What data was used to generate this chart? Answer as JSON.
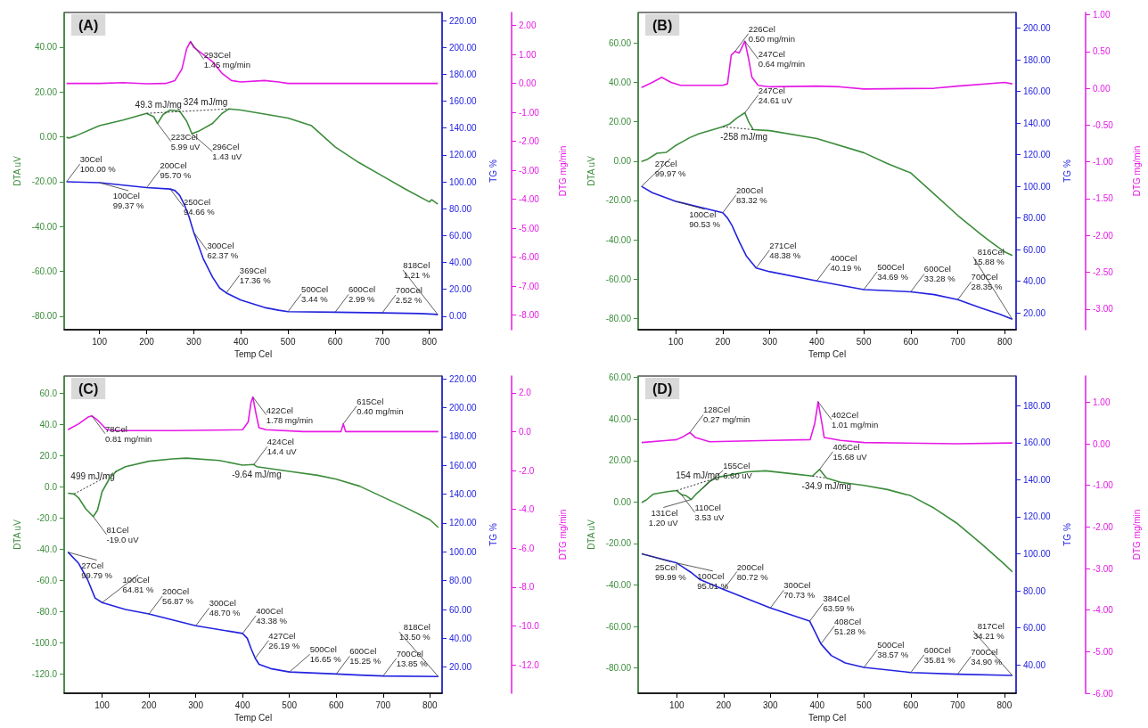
{
  "chart_data": [
    {
      "type": "line",
      "title": "(A)",
      "xlabel": "Temp Cel",
      "ylabel": "DTA uV",
      "y2label": "TG %",
      "y3label": "DTG mg/min",
      "marker": "none",
      "line_style": "solid",
      "xlim": [
        25,
        827
      ],
      "xticks": [
        100,
        200,
        300,
        400,
        500,
        600,
        700,
        800
      ],
      "ylim": [
        -86,
        55.5
      ],
      "yticks": [
        {
          "value": -80,
          "label": "-80.00"
        },
        {
          "value": -60,
          "label": "-60.00"
        },
        {
          "value": -40,
          "label": "-40.00"
        },
        {
          "value": -20,
          "label": "-20.00"
        },
        {
          "value": 0,
          "label": "0.00"
        },
        {
          "value": 20,
          "label": "20.00"
        },
        {
          "value": 40,
          "label": "40.00"
        }
      ],
      "y2lim": [
        -10,
        226
      ],
      "y2ticks": [
        {
          "value": 0,
          "label": "0.00"
        },
        {
          "value": 20,
          "label": "20.00"
        },
        {
          "value": 40,
          "label": "40.00"
        },
        {
          "value": 60,
          "label": "60.00"
        },
        {
          "value": 80,
          "label": "80.00"
        },
        {
          "value": 100,
          "label": "100.00"
        },
        {
          "value": 120,
          "label": "120.00"
        },
        {
          "value": 140,
          "label": "140.00"
        },
        {
          "value": 160,
          "label": "160.00"
        },
        {
          "value": 180,
          "label": "180.00"
        },
        {
          "value": 200,
          "label": "200.00"
        },
        {
          "value": 220,
          "label": "220.00"
        }
      ],
      "y3lim": [
        -8.5,
        2.45
      ],
      "y3ticks": [
        {
          "value": -8,
          "label": "-8.00"
        },
        {
          "value": -7,
          "label": "-7.00"
        },
        {
          "value": -6,
          "label": "-6.00"
        },
        {
          "value": -5,
          "label": "-5.00"
        },
        {
          "value": -4,
          "label": "-4.00"
        },
        {
          "value": -3,
          "label": "-3.00"
        },
        {
          "value": -2,
          "label": "-2.00"
        },
        {
          "value": -1,
          "label": "-1.00"
        },
        {
          "value": 0,
          "label": "0.00"
        },
        {
          "value": 1,
          "label": "1.00"
        },
        {
          "value": 2,
          "label": "2.00"
        }
      ],
      "annotations": [
        {
          "text": "49.3 mJ/mg",
          "x": 225,
          "y": 10.79
        },
        {
          "text": "324 mJ/mg",
          "x": 325,
          "y": 11.93
        }
      ],
      "series": [
        {
          "axis": "y3",
          "color": "#e619e6",
          "x": [
            30,
            100,
            150,
            200,
            240,
            260,
            275,
            285,
            293,
            300,
            320,
            340,
            360,
            380,
            400,
            450,
            480,
            500,
            600,
            700,
            818
          ],
          "values": [
            0,
            0,
            0.03,
            -0.01,
            0,
            0.1,
            0.5,
            1.2,
            1.45,
            1.25,
            1.0,
            0.75,
            0.35,
            0.1,
            0.05,
            0.1,
            0.05,
            0,
            0,
            0,
            0
          ],
          "value_labels": [
            null,
            null,
            null,
            null,
            null,
            null,
            null,
            null,
            "293Cel\n1.45 mg/min",
            null,
            null,
            null,
            null,
            null,
            null,
            null,
            null,
            null,
            null,
            null,
            null
          ]
        },
        {
          "axis": "y",
          "color": "#3c8d3c",
          "x": [
            30,
            35,
            50,
            100,
            150,
            200,
            215,
            223,
            235,
            250,
            270,
            285,
            296,
            310,
            340,
            360,
            375,
            400,
            450,
            500,
            550,
            600,
            650,
            700,
            750,
            800,
            805,
            818
          ],
          "values": [
            -0.2,
            -0.5,
            0.5,
            5,
            7.5,
            10.5,
            9,
            5.99,
            10,
            12,
            11.5,
            7,
            1.43,
            2.5,
            6,
            10.5,
            12.5,
            12,
            10.2,
            8.4,
            5,
            -4.5,
            -11.4,
            -17.4,
            -23.4,
            -29,
            -28,
            -30
          ],
          "value_labels": [
            null,
            null,
            null,
            null,
            null,
            null,
            null,
            "223Cel\n5.99 uV",
            null,
            null,
            null,
            null,
            "296Cel\n1.43 uV",
            null,
            null,
            null,
            null,
            null,
            null,
            null,
            null,
            null,
            null,
            null,
            null,
            null,
            null,
            null
          ]
        },
        {
          "axis": "y",
          "color": "#333333",
          "line_style": "dotted",
          "x": [
            200,
            375
          ],
          "values": [
            10.5,
            12.5
          ]
        },
        {
          "axis": "y2",
          "color": "#2323e0",
          "x": [
            30,
            100,
            200,
            250,
            260,
            270,
            280,
            290,
            300,
            320,
            340,
            355,
            369,
            400,
            450,
            480,
            500,
            600,
            700,
            780,
            810,
            818
          ],
          "values": [
            100,
            99.37,
            95.7,
            94.66,
            93.5,
            90,
            83,
            74,
            62.37,
            43,
            29,
            21,
            17.36,
            12,
            6.5,
            4.5,
            3.44,
            2.99,
            2.52,
            2.0,
            1.5,
            1.21
          ],
          "value_labels": [
            "30Cel\n100.00 %",
            "100Cel\n99.37 %",
            "200Cel\n95.70 %",
            "250Cel\n94.66 %",
            null,
            null,
            null,
            null,
            "300Cel\n62.37 %",
            null,
            null,
            null,
            "369Cel\n17.36 %",
            null,
            null,
            null,
            "500Cel\n3.44 %",
            "600Cel\n2.99 %",
            "700Cel\n2.52 %",
            null,
            null,
            "818Cel\n1.21 %"
          ]
        }
      ]
    },
    {
      "type": "line",
      "title": "(B)",
      "xlabel": "Temp Cel",
      "ylabel": "DTA uV",
      "y2label": "TG %",
      "y3label": "DTG mg/min",
      "marker": "none",
      "line_style": "solid",
      "xlim": [
        20,
        824
      ],
      "xticks": [
        100,
        200,
        300,
        400,
        500,
        600,
        700,
        800
      ],
      "ylim": [
        -85.7,
        75.6
      ],
      "yticks": [
        {
          "value": -80,
          "label": "-80.00"
        },
        {
          "value": -60,
          "label": "-60.00"
        },
        {
          "value": -40,
          "label": "-40.00"
        },
        {
          "value": -20,
          "label": "-20.00"
        },
        {
          "value": 0,
          "label": "0.00"
        },
        {
          "value": 20,
          "label": "20.00"
        },
        {
          "value": 40,
          "label": "40.00"
        },
        {
          "value": 60,
          "label": "60.00"
        }
      ],
      "y2lim": [
        9.3,
        210
      ],
      "y2ticks": [
        {
          "value": 20,
          "label": "20.00"
        },
        {
          "value": 40,
          "label": "40.00"
        },
        {
          "value": 60,
          "label": "60.00"
        },
        {
          "value": 80,
          "label": "80.00"
        },
        {
          "value": 100,
          "label": "100.00"
        },
        {
          "value": 120,
          "label": "120.00"
        },
        {
          "value": 140,
          "label": "140.00"
        },
        {
          "value": 160,
          "label": "160.00"
        },
        {
          "value": 180,
          "label": "180.00"
        },
        {
          "value": 200,
          "label": "200.00"
        }
      ],
      "y3lim": [
        -3.28,
        1.03
      ],
      "y3ticks": [
        {
          "value": -3,
          "label": "-3.00"
        },
        {
          "value": -2.5,
          "label": "-2.50"
        },
        {
          "value": -2,
          "label": "-2.00"
        },
        {
          "value": -1.5,
          "label": "-1.50"
        },
        {
          "value": -1,
          "label": "-1.00"
        },
        {
          "value": -0.5,
          "label": "-0.50"
        },
        {
          "value": 0,
          "label": "0.00"
        },
        {
          "value": 0.5,
          "label": "0.50"
        },
        {
          "value": 1,
          "label": "1.00"
        }
      ],
      "annotations": [
        {
          "text": "-258 mJ/mg",
          "x": 245,
          "y": 16.46
        }
      ],
      "series": [
        {
          "axis": "y3",
          "color": "#e619e6",
          "x": [
            27,
            50,
            70,
            90,
            110,
            200,
            210,
            218,
            226,
            235,
            247,
            255,
            262,
            275,
            300,
            400,
            450,
            500,
            650,
            700,
            800,
            816
          ],
          "values": [
            0.01,
            0.08,
            0.15,
            0.08,
            0.04,
            0.04,
            0.06,
            0.45,
            0.5,
            0.48,
            0.64,
            0.4,
            0.15,
            0.04,
            0.02,
            0.03,
            0.02,
            -0.01,
            0,
            0.03,
            0.08,
            0.06
          ],
          "value_labels": [
            null,
            null,
            null,
            null,
            null,
            null,
            null,
            null,
            "226Cel\n0.50 mg/min",
            null,
            "247Cel\n0.64 mg/min",
            null,
            null,
            null,
            null,
            null,
            null,
            null,
            null,
            null,
            null,
            null
          ]
        },
        {
          "axis": "y",
          "color": "#3c8d3c",
          "x": [
            27,
            40,
            60,
            80,
            100,
            130,
            150,
            200,
            215,
            230,
            247,
            255,
            265,
            300,
            400,
            500,
            550,
            600,
            650,
            700,
            750,
            770,
            800,
            816
          ],
          "values": [
            -0.2,
            1,
            4,
            4.5,
            8,
            12,
            14,
            17.5,
            19,
            22,
            24.61,
            20,
            16,
            15.5,
            11.5,
            4.3,
            -1.2,
            -6,
            -16.8,
            -27.6,
            -37.4,
            -41,
            -46.2,
            -48
          ],
          "value_labels": [
            null,
            null,
            null,
            null,
            null,
            null,
            null,
            null,
            null,
            null,
            "247Cel\n24.61 uV",
            null,
            null,
            null,
            null,
            null,
            null,
            null,
            null,
            null,
            null,
            null,
            null,
            null
          ]
        },
        {
          "axis": "y",
          "color": "#333333",
          "line_style": "dotted",
          "x": [
            200,
            265
          ],
          "values": [
            17.5,
            16
          ]
        },
        {
          "axis": "y2",
          "color": "#2323e0",
          "x": [
            27,
            50,
            100,
            200,
            210,
            220,
            235,
            250,
            271,
            300,
            400,
            500,
            600,
            650,
            700,
            750,
            790,
            816
          ],
          "values": [
            99.97,
            96,
            90.53,
            83.32,
            80,
            75,
            65,
            56,
            48.38,
            46,
            40.19,
            34.69,
            33.28,
            31.5,
            28.35,
            23,
            19,
            15.88
          ],
          "value_labels": [
            "27Cel\n99.97 %",
            null,
            "100Cel\n90.53 %",
            "200Cel\n83.32 %",
            null,
            null,
            null,
            null,
            "271Cel\n48.38 %",
            null,
            "400Cel\n40.19 %",
            "500Cel\n34.69 %",
            "600Cel\n33.28 %",
            null,
            "700Cel\n28.35 %",
            null,
            null,
            "816Cel\n15.88 %"
          ]
        }
      ]
    },
    {
      "type": "line",
      "title": "(C)",
      "xlabel": "Temp Cel",
      "ylabel": "DTA uV",
      "y2label": "TG %",
      "y3label": "DTG mg/min",
      "marker": "none",
      "line_style": "solid",
      "xlim": [
        19,
        826
      ],
      "xticks": [
        100,
        200,
        300,
        400,
        500,
        600,
        700,
        800
      ],
      "ylim": [
        -132.2,
        71.1
      ],
      "yticks": [
        {
          "value": -120,
          "label": "-120.0"
        },
        {
          "value": -100,
          "label": "-100.0"
        },
        {
          "value": -80,
          "label": "-80.0"
        },
        {
          "value": -60,
          "label": "-60.0"
        },
        {
          "value": -40,
          "label": "-40.0"
        },
        {
          "value": -20,
          "label": "-20.0"
        },
        {
          "value": 0,
          "label": "0.0"
        },
        {
          "value": 20,
          "label": "20.0"
        },
        {
          "value": 40,
          "label": "40.0"
        },
        {
          "value": 60,
          "label": "60.0"
        }
      ],
      "y2lim": [
        1.9,
        222
      ],
      "y2ticks": [
        {
          "value": 20,
          "label": "20.00"
        },
        {
          "value": 40,
          "label": "40.00"
        },
        {
          "value": 60,
          "label": "60.00"
        },
        {
          "value": 80,
          "label": "80.00"
        },
        {
          "value": 100,
          "label": "100.00"
        },
        {
          "value": 120,
          "label": "120.00"
        },
        {
          "value": 140,
          "label": "140.00"
        },
        {
          "value": 160,
          "label": "160.00"
        },
        {
          "value": 180,
          "label": "180.00"
        },
        {
          "value": 200,
          "label": "200.00"
        },
        {
          "value": 220,
          "label": "220.00"
        }
      ],
      "y3lim": [
        -13.46,
        2.86
      ],
      "y3ticks": [
        {
          "value": -12,
          "label": "-12.0"
        },
        {
          "value": -10,
          "label": "-10.0"
        },
        {
          "value": -8,
          "label": "-8.0"
        },
        {
          "value": -6,
          "label": "-6.0"
        },
        {
          "value": -4,
          "label": "-4.0"
        },
        {
          "value": -2,
          "label": "-2.0"
        },
        {
          "value": 0,
          "label": "0.0"
        },
        {
          "value": 2,
          "label": "2.0"
        }
      ],
      "annotations": [
        {
          "text": "499 mJ/mg",
          "x": 80,
          "y": 1.94
        },
        {
          "text": "-9.64 mJ/mg",
          "x": 430,
          "y": 13
        }
      ],
      "series": [
        {
          "axis": "y3",
          "color": "#e619e6",
          "x": [
            27,
            50,
            70,
            78,
            90,
            110,
            130,
            250,
            400,
            412,
            418,
            422,
            428,
            435,
            450,
            530,
            610,
            615,
            620,
            818
          ],
          "values": [
            0.1,
            0.4,
            0.75,
            0.81,
            0.6,
            0.1,
            0.05,
            0.05,
            0.1,
            0.5,
            1.5,
            1.78,
            1.0,
            0.2,
            0.1,
            0,
            0,
            0.4,
            0,
            0
          ],
          "value_labels": [
            null,
            null,
            null,
            "78Cel\n0.81 mg/min",
            null,
            null,
            null,
            null,
            null,
            null,
            null,
            "422Cel\n1.78 mg/min",
            null,
            null,
            null,
            null,
            null,
            "615Cel\n0.40 mg/min",
            null,
            null
          ]
        },
        {
          "axis": "y",
          "color": "#3c8d3c",
          "x": [
            27,
            40,
            50,
            65,
            81,
            90,
            100,
            115,
            130,
            150,
            200,
            250,
            280,
            350,
            400,
            424,
            430,
            500,
            560,
            600,
            650,
            700,
            750,
            800,
            818
          ],
          "values": [
            -4,
            -4.5,
            -7,
            -14,
            -19.0,
            -15,
            -3,
            5,
            10,
            13,
            16.5,
            18,
            18.5,
            17,
            14,
            14.4,
            13,
            10,
            7.5,
            5,
            0.5,
            -6.5,
            -13.5,
            -21,
            -26
          ],
          "value_labels": [
            null,
            null,
            null,
            null,
            "81Cel\n-19.0 uV",
            null,
            null,
            null,
            null,
            null,
            null,
            null,
            null,
            null,
            null,
            "424Cel\n14.4 uV",
            null,
            null,
            null,
            null,
            null,
            null,
            null,
            null,
            null
          ]
        },
        {
          "axis": "y",
          "color": "#333333",
          "line_style": "dotted",
          "x": [
            40,
            130
          ],
          "values": [
            -4.5,
            10
          ]
        },
        {
          "axis": "y2",
          "color": "#2323e0",
          "x": [
            27,
            50,
            70,
            85,
            100,
            150,
            200,
            300,
            400,
            410,
            418,
            427,
            435,
            460,
            500,
            600,
            650,
            700,
            818
          ],
          "values": [
            99.79,
            92,
            80,
            68,
            64.81,
            60,
            56.87,
            48.7,
            43.38,
            40,
            33,
            26.19,
            22,
            19,
            16.65,
            15.25,
            14.5,
            13.85,
            13.5
          ],
          "value_labels": [
            "27Cel\n99.79 %",
            null,
            null,
            null,
            "100Cel\n64.81 %",
            null,
            "200Cel\n56.87 %",
            "300Cel\n48.70 %",
            "400Cel\n43.38 %",
            null,
            null,
            "427Cel\n26.19 %",
            null,
            null,
            "500Cel\n16.65 %",
            "600Cel\n15.25 %",
            null,
            "700Cel\n13.85 %",
            "818Cel\n13.50 %"
          ]
        }
      ]
    },
    {
      "type": "line",
      "title": "(D)",
      "xlabel": "Temp Cel",
      "ylabel": "DTA uV",
      "y2label": "TG %",
      "y3label": "DTG mg/min",
      "marker": "none",
      "line_style": "solid",
      "xlim": [
        17.5,
        825
      ],
      "xticks": [
        100,
        200,
        300,
        400,
        500,
        600,
        700,
        800
      ],
      "ylim": [
        -92.2,
        60.7
      ],
      "yticks": [
        {
          "value": -80,
          "label": "-80.00"
        },
        {
          "value": -60,
          "label": "-60.00"
        },
        {
          "value": -40,
          "label": "-40.00"
        },
        {
          "value": -20,
          "label": "-20.00"
        },
        {
          "value": 0,
          "label": "0.00"
        },
        {
          "value": 20,
          "label": "20.00"
        },
        {
          "value": 40,
          "label": "40.00"
        },
        {
          "value": 60,
          "label": "60.00"
        }
      ],
      "y2lim": [
        24.6,
        196.1
      ],
      "y2ticks": [
        {
          "value": 40,
          "label": "40.00"
        },
        {
          "value": 60,
          "label": "60.00"
        },
        {
          "value": 80,
          "label": "80.00"
        },
        {
          "value": 100,
          "label": "100.00"
        },
        {
          "value": 120,
          "label": "120.00"
        },
        {
          "value": 140,
          "label": "140.00"
        },
        {
          "value": 160,
          "label": "160.00"
        },
        {
          "value": 180,
          "label": "180.00"
        }
      ],
      "y3lim": [
        -6,
        1.63
      ],
      "y3ticks": [
        {
          "value": -6,
          "label": "-6.00"
        },
        {
          "value": -5,
          "label": "-5.00"
        },
        {
          "value": -4,
          "label": "-4.00"
        },
        {
          "value": -3,
          "label": "-3.00"
        },
        {
          "value": -2,
          "label": "-2.00"
        },
        {
          "value": -1,
          "label": "-1.00"
        },
        {
          "value": 0,
          "label": "0.00"
        },
        {
          "value": 1,
          "label": "1.00"
        }
      ],
      "annotations": [
        {
          "text": "154 mJ/mg",
          "x": 145,
          "y": 8.75
        },
        {
          "text": "-34.9 mJ/mg",
          "x": 420,
          "y": 11.5
        }
      ],
      "series": [
        {
          "axis": "y3",
          "color": "#e619e6",
          "x": [
            25,
            80,
            100,
            115,
            128,
            140,
            170,
            300,
            385,
            395,
            402,
            410,
            415,
            450,
            500,
            700,
            817
          ],
          "values": [
            0.03,
            0.08,
            0.1,
            0.18,
            0.27,
            0.15,
            0.05,
            0.08,
            0.1,
            0.5,
            1.01,
            0.5,
            0.15,
            0.08,
            0.03,
            0,
            0.02
          ],
          "value_labels": [
            null,
            null,
            null,
            null,
            "128Cel\n0.27 mg/min",
            null,
            null,
            null,
            null,
            null,
            "402Cel\n1.01 mg/min",
            null,
            null,
            null,
            null,
            null,
            null
          ]
        },
        {
          "axis": "y",
          "color": "#3c8d3c",
          "x": [
            25,
            35,
            50,
            80,
            100,
            110,
            120,
            131,
            140,
            155,
            170,
            190,
            250,
            290,
            350,
            390,
            405,
            420,
            450,
            500,
            550,
            600,
            650,
            700,
            750,
            800,
            817
          ],
          "values": [
            -0.3,
            1,
            3.8,
            5,
            5.5,
            3.53,
            3,
            1.2,
            3.5,
            6.6,
            10,
            12,
            14.5,
            15,
            13.5,
            12.5,
            15.68,
            11.5,
            9.5,
            8,
            6,
            3,
            -3,
            -10.5,
            -20,
            -30,
            -33.7
          ],
          "value_labels": [
            null,
            null,
            null,
            null,
            null,
            "110Cel\n3.53 uV",
            null,
            "131Cel\n1.20 uV",
            null,
            "155Cel\n6.60 uV",
            null,
            null,
            null,
            null,
            null,
            null,
            "405Cel\n15.68 uV",
            null,
            null,
            null,
            null,
            null,
            null,
            null,
            null,
            null,
            null
          ]
        },
        {
          "axis": "y",
          "color": "#333333",
          "line_style": "dotted",
          "x": [
            100,
            190
          ],
          "values": [
            5.5,
            12
          ]
        },
        {
          "axis": "y",
          "color": "#333333",
          "line_style": "dotted",
          "x": [
            390,
            420
          ],
          "values": [
            12.5,
            11.5
          ]
        },
        {
          "axis": "y2",
          "color": "#2323e0",
          "x": [
            25,
            100,
            130,
            150,
            200,
            300,
            384,
            395,
            408,
            430,
            460,
            500,
            600,
            700,
            817
          ],
          "values": [
            99.99,
            95.01,
            90,
            86,
            80.72,
            70.73,
            63.59,
            58,
            51.28,
            45,
            41,
            38.57,
            35.81,
            34.9,
            34.21
          ],
          "value_labels": [
            "25Cel\n99.99 %",
            "100Cel\n95.01 %",
            null,
            null,
            "200Cel\n80.72 %",
            "300Cel\n70.73 %",
            "384Cel\n63.59 %",
            null,
            "408Cel\n51.28 %",
            null,
            null,
            "500Cel\n38.57 %",
            "600Cel\n35.81 %",
            "700Cel\n34.90 %",
            "817Cel\n34.21 %"
          ]
        }
      ]
    }
  ]
}
